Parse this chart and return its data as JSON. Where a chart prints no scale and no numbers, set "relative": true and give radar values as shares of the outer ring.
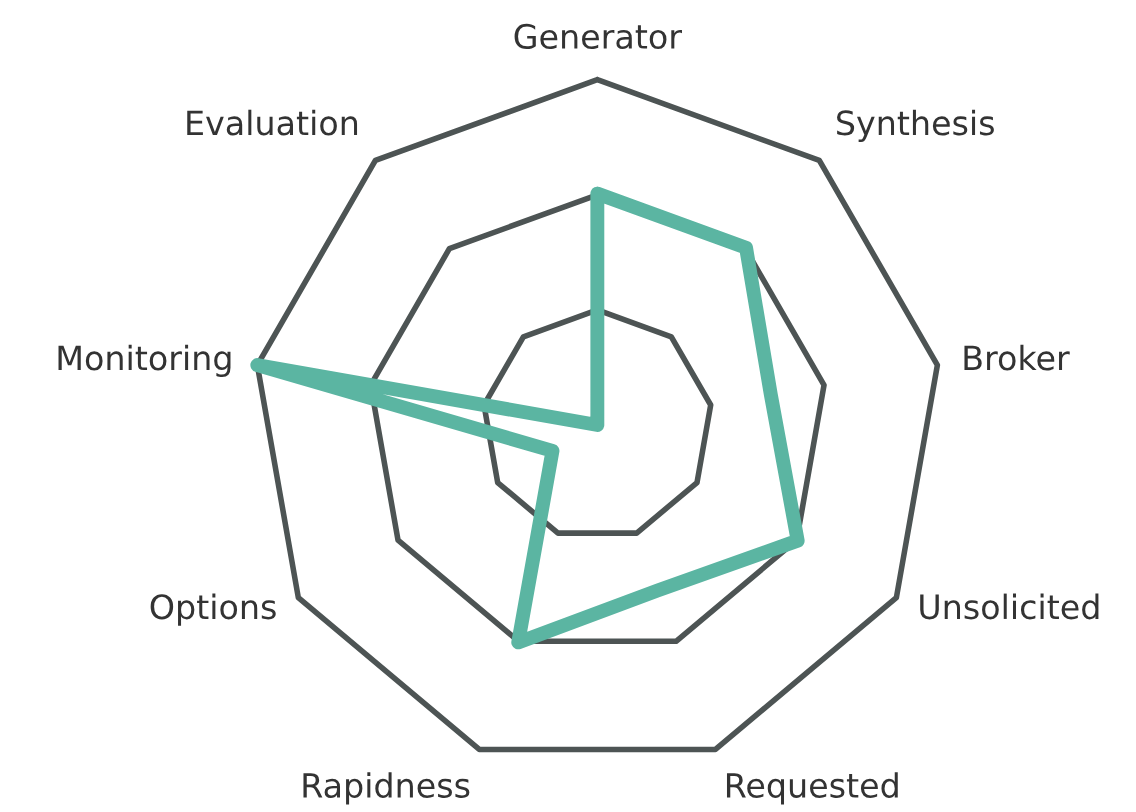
{
  "chart_data": {
    "type": "radar",
    "relative": true,
    "categories": [
      "Generator",
      "Synthesis",
      "Broker",
      "Unsolicited",
      "Requested",
      "Rapidness",
      "Options",
      "Monitoring",
      "Evaluation"
    ],
    "series": [
      {
        "color": "#5bb5a2",
        "values": [
          0.67,
          0.67,
          0.51,
          0.67,
          0.51,
          0.67,
          0.15,
          1.0,
          0.0
        ]
      }
    ],
    "grid": true,
    "marker": "none",
    "line_style": "solid"
  }
}
